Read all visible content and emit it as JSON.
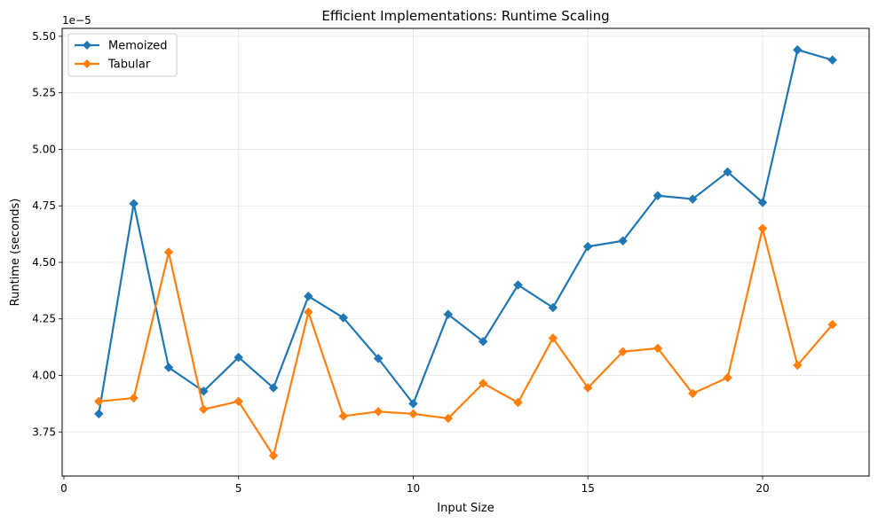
{
  "chart_data": {
    "type": "line",
    "title": "Efficient Implementations: Runtime Scaling",
    "xlabel": "Input Size",
    "ylabel": "Runtime (seconds)",
    "y_scale_label": "1e−5",
    "xlim": [
      -0.05,
      23.05
    ],
    "ylim": [
      3.555,
      5.535
    ],
    "x_ticks": [
      0,
      5,
      10,
      15,
      20
    ],
    "y_ticks": [
      3.75,
      4.0,
      4.25,
      4.5,
      4.75,
      5.0,
      5.25,
      5.5
    ],
    "y_tick_labels": [
      "3.75",
      "4.00",
      "4.25",
      "4.50",
      "4.75",
      "5.00",
      "5.25",
      "5.50"
    ],
    "grid": true,
    "legend_position": "top-left",
    "x": [
      1,
      2,
      3,
      4,
      5,
      6,
      7,
      8,
      9,
      10,
      11,
      12,
      13,
      14,
      15,
      16,
      17,
      18,
      19,
      20,
      21,
      22
    ],
    "series": [
      {
        "name": "Memoized",
        "color": "#1f77b4",
        "marker": "diamond",
        "values": [
          3.83,
          4.76,
          4.035,
          3.93,
          4.08,
          3.945,
          4.35,
          4.255,
          4.075,
          3.875,
          4.27,
          4.15,
          4.4,
          4.3,
          4.57,
          4.595,
          4.795,
          4.78,
          4.9,
          4.765,
          5.44,
          5.395
        ]
      },
      {
        "name": "Tabular",
        "color": "#ff7f0e",
        "marker": "diamond",
        "values": [
          3.885,
          3.9,
          4.545,
          3.85,
          3.885,
          3.645,
          4.28,
          3.82,
          3.84,
          3.83,
          3.81,
          3.965,
          3.88,
          4.165,
          3.945,
          4.105,
          4.12,
          3.92,
          3.99,
          4.65,
          4.045,
          4.225
        ]
      }
    ]
  }
}
